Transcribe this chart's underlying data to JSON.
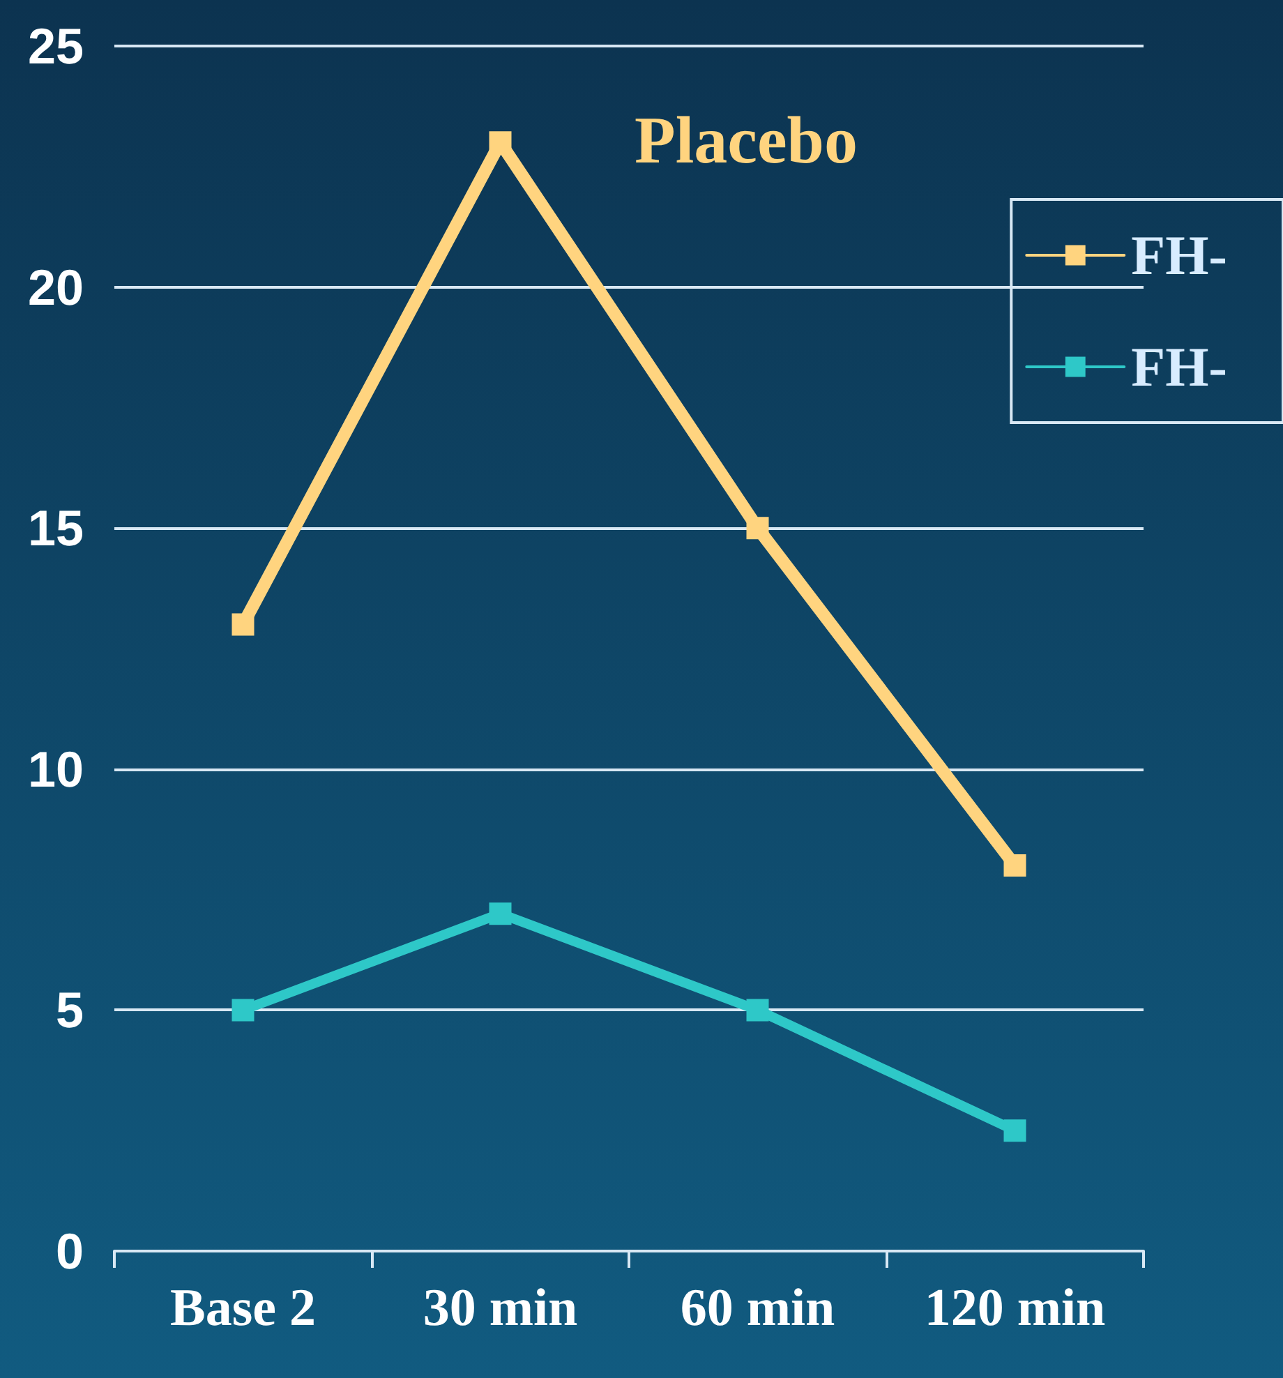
{
  "chart_data": {
    "type": "line",
    "title": "Placebo",
    "categories": [
      "Base 2",
      "30 min",
      "60 min",
      "120 min"
    ],
    "series": [
      {
        "name": "FH-",
        "color": "#ffd47f",
        "values": [
          13,
          23,
          15,
          8
        ]
      },
      {
        "name": "FH-",
        "color": "#2ec8c8",
        "values": [
          5,
          7,
          5,
          2.5
        ]
      }
    ],
    "ylim": [
      0,
      25
    ],
    "yticks": [
      0,
      5,
      10,
      15,
      20,
      25
    ],
    "grid": "y",
    "legend": "right",
    "marker": "square",
    "line_style": "solid"
  }
}
